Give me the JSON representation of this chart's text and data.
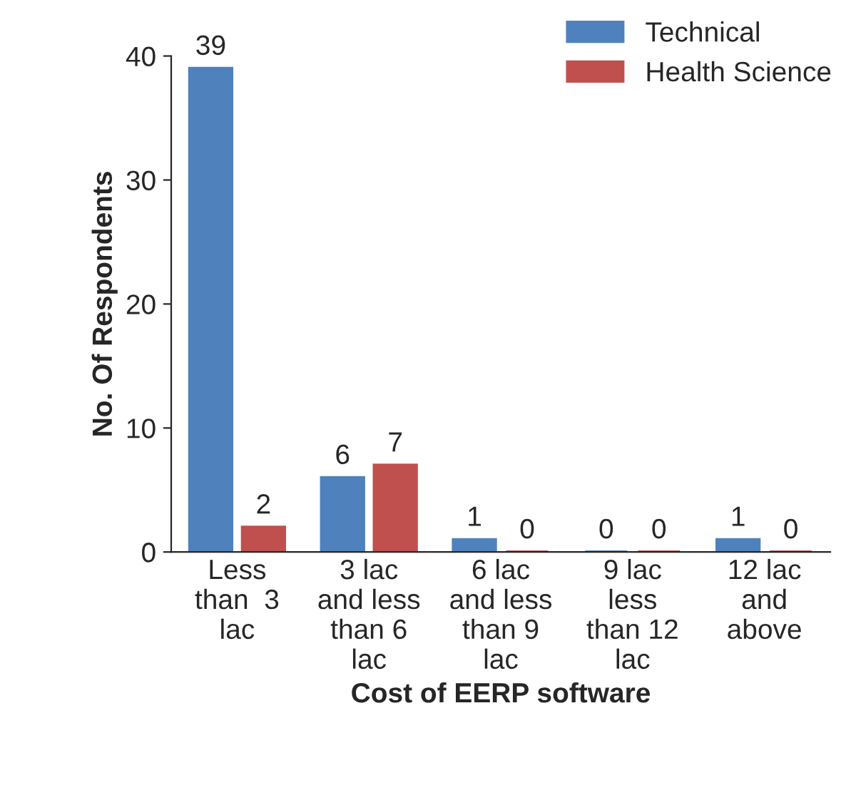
{
  "chart_data": {
    "type": "bar",
    "xlabel": "Cost of EERP software",
    "ylabel": "No. Of Respondents",
    "categories": [
      "Less\nthan  3\nlac",
      "3 lac\nand less\nthan 6\nlac",
      "6 lac\nand less\nthan 9\nlac",
      "9 lac\nless\nthan 12\nlac",
      "12 lac\nand\nabove"
    ],
    "series": [
      {
        "name": "Technical",
        "color": "#4f81bd",
        "values": [
          39,
          6,
          1,
          0,
          1
        ]
      },
      {
        "name": "Health Science",
        "color": "#c0504d",
        "values": [
          2,
          7,
          0,
          0,
          0
        ]
      }
    ],
    "ylim": [
      0,
      40
    ],
    "yticks": [
      0,
      10,
      20,
      30,
      40
    ],
    "data_labels": true,
    "legend": "top right",
    "grid": false
  }
}
